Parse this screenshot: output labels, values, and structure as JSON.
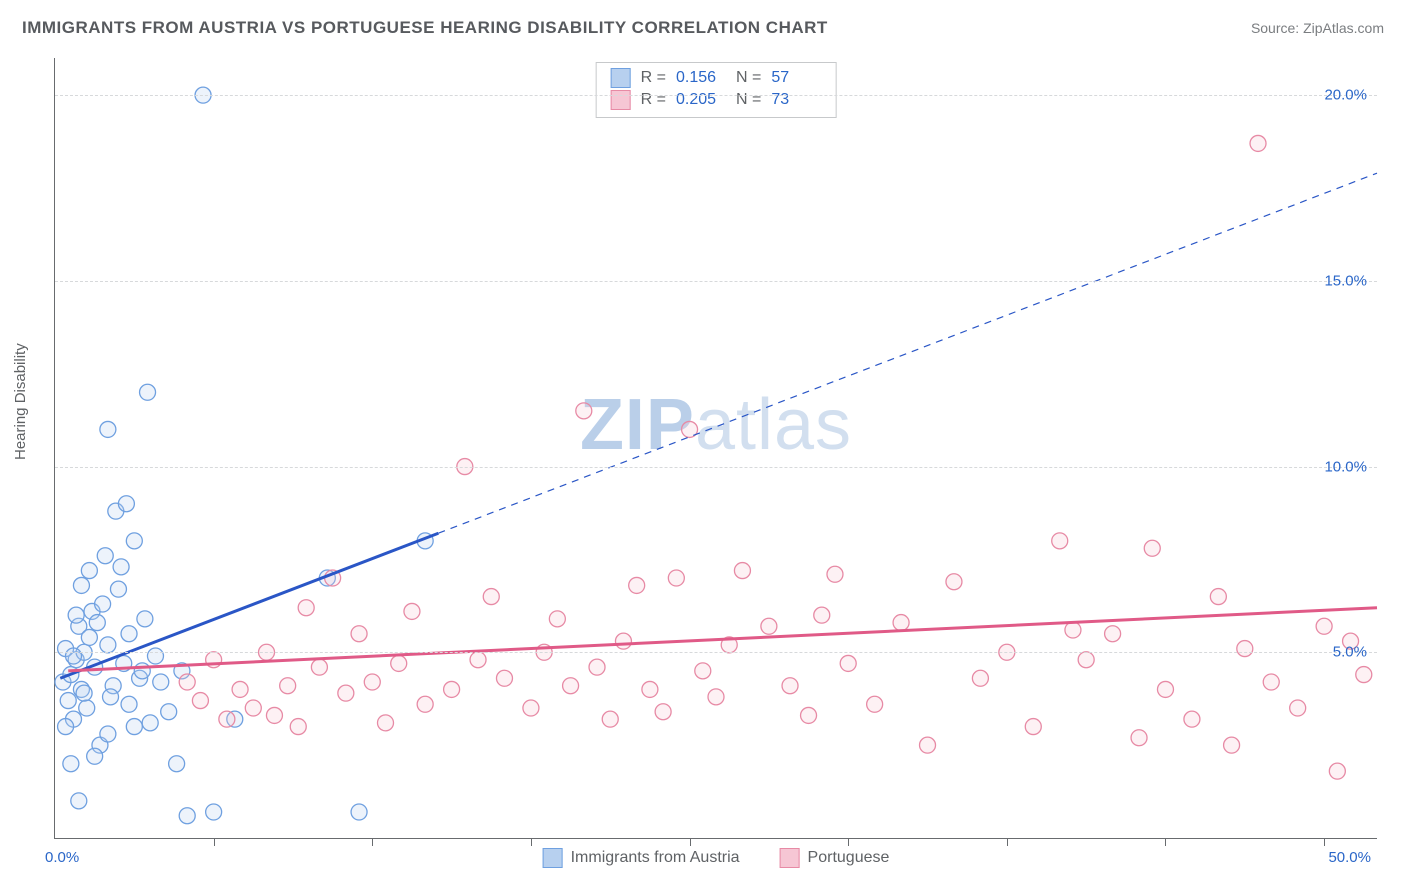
{
  "title": "IMMIGRANTS FROM AUSTRIA VS PORTUGUESE HEARING DISABILITY CORRELATION CHART",
  "source": "Source: ZipAtlas.com",
  "ylabel": "Hearing Disability",
  "watermark_a": "ZIP",
  "watermark_b": "atlas",
  "chart": {
    "type": "scatter",
    "xlim": [
      0,
      50
    ],
    "ylim": [
      0,
      21
    ],
    "x_origin_label": "0.0%",
    "x_max_label": "50.0%",
    "y_ticks": [
      5.0,
      10.0,
      15.0,
      20.0
    ],
    "y_tick_labels": [
      "5.0%",
      "10.0%",
      "15.0%",
      "20.0%"
    ],
    "x_tick_positions": [
      6,
      12,
      18,
      24,
      30,
      36,
      42,
      48
    ],
    "background_color": "#ffffff",
    "grid_color": "#d7d9db",
    "axis_color": "#686b6e",
    "tick_label_color": "#2a66c8",
    "marker_radius": 8,
    "marker_fill_opacity": 0.25,
    "marker_stroke_width": 1.3,
    "series": [
      {
        "name": "Immigrants from Austria",
        "color_stroke": "#6fa0e0",
        "color_fill": "#b7d0ef",
        "trend_color": "#2a56c6",
        "trend_width_solid": 3,
        "trend_width_dash": 1.2,
        "R": 0.156,
        "N": 57,
        "trend": {
          "x1": 0.2,
          "y1": 4.3,
          "x2": 50.0,
          "y2": 17.9,
          "solid_until_x": 14.5
        },
        "points": [
          [
            0.3,
            4.2
          ],
          [
            0.5,
            3.7
          ],
          [
            0.4,
            5.1
          ],
          [
            0.6,
            4.4
          ],
          [
            0.8,
            4.8
          ],
          [
            0.7,
            3.2
          ],
          [
            0.9,
            5.7
          ],
          [
            1.0,
            4.0
          ],
          [
            1.1,
            5.0
          ],
          [
            1.3,
            5.4
          ],
          [
            1.2,
            3.5
          ],
          [
            1.4,
            6.1
          ],
          [
            1.5,
            4.6
          ],
          [
            1.6,
            5.8
          ],
          [
            1.8,
            6.3
          ],
          [
            2.0,
            5.2
          ],
          [
            2.2,
            4.1
          ],
          [
            2.4,
            6.7
          ],
          [
            2.1,
            3.8
          ],
          [
            1.7,
            2.5
          ],
          [
            2.5,
            7.3
          ],
          [
            2.6,
            4.7
          ],
          [
            2.8,
            5.5
          ],
          [
            3.0,
            8.0
          ],
          [
            3.2,
            4.3
          ],
          [
            3.4,
            5.9
          ],
          [
            3.6,
            3.1
          ],
          [
            3.8,
            4.9
          ],
          [
            2.3,
            8.8
          ],
          [
            1.9,
            7.6
          ],
          [
            2.7,
            9.0
          ],
          [
            4.0,
            4.2
          ],
          [
            4.3,
            3.4
          ],
          [
            4.6,
            2.0
          ],
          [
            1.0,
            6.8
          ],
          [
            1.3,
            7.2
          ],
          [
            0.8,
            6.0
          ],
          [
            2.0,
            11.0
          ],
          [
            3.0,
            3.0
          ],
          [
            5.0,
            0.6
          ],
          [
            5.6,
            20.0
          ],
          [
            3.5,
            12.0
          ],
          [
            4.8,
            4.5
          ],
          [
            6.0,
            0.7
          ],
          [
            6.8,
            3.2
          ],
          [
            11.5,
            0.7
          ],
          [
            14.0,
            8.0
          ],
          [
            10.3,
            7.0
          ],
          [
            0.6,
            2.0
          ],
          [
            0.9,
            1.0
          ],
          [
            1.5,
            2.2
          ],
          [
            2.0,
            2.8
          ],
          [
            2.8,
            3.6
          ],
          [
            3.3,
            4.5
          ],
          [
            0.4,
            3.0
          ],
          [
            0.7,
            4.9
          ],
          [
            1.1,
            3.9
          ]
        ]
      },
      {
        "name": "Portuguese",
        "color_stroke": "#e78aa5",
        "color_fill": "#f6c6d4",
        "trend_color": "#e05a87",
        "trend_width_solid": 3,
        "R": 0.205,
        "N": 73,
        "trend": {
          "x1": 0.5,
          "y1": 4.5,
          "x2": 50.0,
          "y2": 6.2,
          "solid_until_x": 50.0
        },
        "points": [
          [
            5.0,
            4.2
          ],
          [
            5.5,
            3.7
          ],
          [
            6.0,
            4.8
          ],
          [
            6.5,
            3.2
          ],
          [
            7.0,
            4.0
          ],
          [
            7.5,
            3.5
          ],
          [
            8.0,
            5.0
          ],
          [
            8.3,
            3.3
          ],
          [
            8.8,
            4.1
          ],
          [
            9.2,
            3.0
          ],
          [
            9.5,
            6.2
          ],
          [
            10.0,
            4.6
          ],
          [
            10.5,
            7.0
          ],
          [
            11.0,
            3.9
          ],
          [
            11.5,
            5.5
          ],
          [
            12.0,
            4.2
          ],
          [
            12.5,
            3.1
          ],
          [
            13.0,
            4.7
          ],
          [
            13.5,
            6.1
          ],
          [
            14.0,
            3.6
          ],
          [
            15.0,
            4.0
          ],
          [
            15.5,
            10.0
          ],
          [
            16.0,
            4.8
          ],
          [
            16.5,
            6.5
          ],
          [
            17.0,
            4.3
          ],
          [
            18.0,
            3.5
          ],
          [
            18.5,
            5.0
          ],
          [
            19.0,
            5.9
          ],
          [
            19.5,
            4.1
          ],
          [
            20.0,
            11.5
          ],
          [
            20.5,
            4.6
          ],
          [
            21.0,
            3.2
          ],
          [
            21.5,
            5.3
          ],
          [
            22.0,
            6.8
          ],
          [
            22.5,
            4.0
          ],
          [
            23.0,
            3.4
          ],
          [
            23.5,
            7.0
          ],
          [
            24.0,
            11.0
          ],
          [
            24.5,
            4.5
          ],
          [
            25.0,
            3.8
          ],
          [
            25.5,
            5.2
          ],
          [
            26.0,
            7.2
          ],
          [
            27.0,
            5.7
          ],
          [
            27.8,
            4.1
          ],
          [
            28.5,
            3.3
          ],
          [
            29.0,
            6.0
          ],
          [
            29.5,
            7.1
          ],
          [
            30.0,
            4.7
          ],
          [
            31.0,
            3.6
          ],
          [
            32.0,
            5.8
          ],
          [
            33.0,
            2.5
          ],
          [
            34.0,
            6.9
          ],
          [
            35.0,
            4.3
          ],
          [
            36.0,
            5.0
          ],
          [
            37.0,
            3.0
          ],
          [
            38.0,
            8.0
          ],
          [
            39.0,
            4.8
          ],
          [
            40.0,
            5.5
          ],
          [
            41.0,
            2.7
          ],
          [
            41.5,
            7.8
          ],
          [
            42.0,
            4.0
          ],
          [
            43.0,
            3.2
          ],
          [
            44.0,
            6.5
          ],
          [
            44.5,
            2.5
          ],
          [
            45.0,
            5.1
          ],
          [
            45.5,
            18.7
          ],
          [
            46.0,
            4.2
          ],
          [
            47.0,
            3.5
          ],
          [
            48.0,
            5.7
          ],
          [
            48.5,
            1.8
          ],
          [
            49.0,
            5.3
          ],
          [
            49.5,
            4.4
          ],
          [
            38.5,
            5.6
          ]
        ]
      }
    ]
  },
  "legend": {
    "series1_label": "Immigrants from Austria",
    "series2_label": "Portuguese"
  },
  "stats_labels": {
    "r": "R  =",
    "n": "N  ="
  }
}
